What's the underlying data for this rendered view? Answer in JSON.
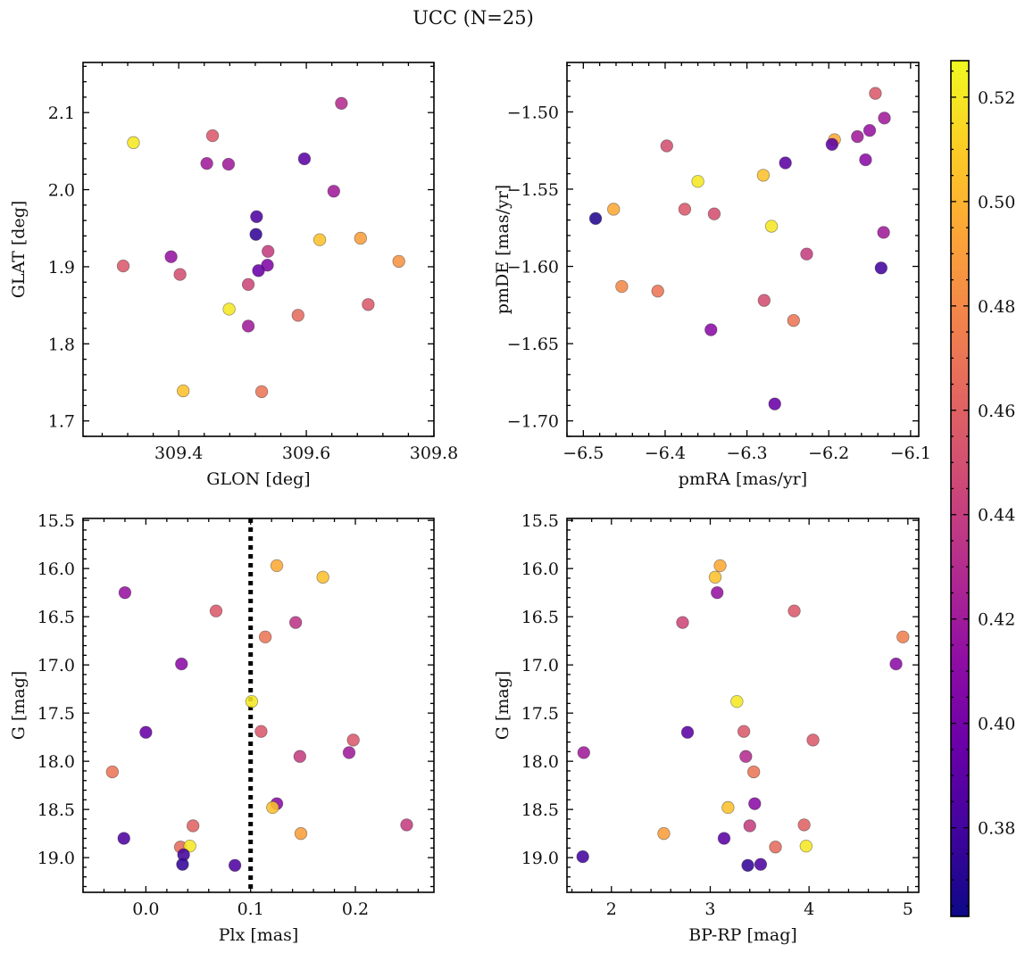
{
  "figure": {
    "title": "UCC (N=25)"
  },
  "colorbar": {
    "vmin": 0.363,
    "vmax": 0.527,
    "ticks": [
      0.38,
      0.4,
      0.42,
      0.44,
      0.46,
      0.48,
      0.5,
      0.52
    ],
    "tick_labels": [
      "0.38",
      "0.40",
      "0.42",
      "0.44",
      "0.46",
      "0.48",
      "0.50",
      "0.52"
    ],
    "colormap": "plasma"
  },
  "chart_data": [
    {
      "type": "scatter",
      "xlabel": "GLON [deg]",
      "ylabel": "GLAT [deg]",
      "xlim": [
        309.25,
        309.8
      ],
      "ylim": [
        1.68,
        2.165
      ],
      "y_inverted": false,
      "xticks": [
        309.4,
        309.6,
        309.8
      ],
      "xtick_labels": [
        "309.4",
        "309.6",
        "309.8"
      ],
      "x_minor_step": 0.04,
      "yticks": [
        1.7,
        1.8,
        1.9,
        2.0,
        2.1
      ],
      "ytick_labels": [
        "1.7",
        "1.8",
        "1.9",
        "2.0",
        "2.1"
      ],
      "y_minor_step": 0.02,
      "points": [
        {
          "x": 309.329,
          "y": 2.061,
          "c": 0.52
        },
        {
          "x": 309.453,
          "y": 2.07,
          "c": 0.455
        },
        {
          "x": 309.444,
          "y": 2.034,
          "c": 0.42
        },
        {
          "x": 309.478,
          "y": 2.033,
          "c": 0.42
        },
        {
          "x": 309.655,
          "y": 2.112,
          "c": 0.43
        },
        {
          "x": 309.597,
          "y": 2.04,
          "c": 0.39
        },
        {
          "x": 309.643,
          "y": 1.998,
          "c": 0.42
        },
        {
          "x": 309.522,
          "y": 1.965,
          "c": 0.385
        },
        {
          "x": 309.521,
          "y": 1.942,
          "c": 0.375
        },
        {
          "x": 309.621,
          "y": 1.935,
          "c": 0.505
        },
        {
          "x": 309.685,
          "y": 1.937,
          "c": 0.49
        },
        {
          "x": 309.745,
          "y": 1.907,
          "c": 0.485
        },
        {
          "x": 309.313,
          "y": 1.901,
          "c": 0.455
        },
        {
          "x": 309.388,
          "y": 1.913,
          "c": 0.415
        },
        {
          "x": 309.402,
          "y": 1.89,
          "c": 0.45
        },
        {
          "x": 309.54,
          "y": 1.92,
          "c": 0.44
        },
        {
          "x": 309.539,
          "y": 1.902,
          "c": 0.405
        },
        {
          "x": 309.525,
          "y": 1.895,
          "c": 0.395
        },
        {
          "x": 309.509,
          "y": 1.877,
          "c": 0.445
        },
        {
          "x": 309.479,
          "y": 1.845,
          "c": 0.52
        },
        {
          "x": 309.587,
          "y": 1.837,
          "c": 0.465
        },
        {
          "x": 309.697,
          "y": 1.851,
          "c": 0.455
        },
        {
          "x": 309.509,
          "y": 1.823,
          "c": 0.42
        },
        {
          "x": 309.407,
          "y": 1.739,
          "c": 0.505
        },
        {
          "x": 309.53,
          "y": 1.738,
          "c": 0.47
        }
      ]
    },
    {
      "type": "scatter",
      "xlabel": "pmRA [mas/yr]",
      "ylabel": "pmDE [mas/yr]",
      "xlim": [
        -6.52,
        -6.09
      ],
      "ylim": [
        -1.71,
        -1.468
      ],
      "y_inverted": false,
      "xticks": [
        -6.5,
        -6.4,
        -6.3,
        -6.2,
        -6.1
      ],
      "xtick_labels": [
        "−6.5",
        "−6.4",
        "−6.3",
        "−6.2",
        "−6.1"
      ],
      "x_minor_step": 0.02,
      "yticks": [
        -1.7,
        -1.65,
        -1.6,
        -1.55,
        -1.5
      ],
      "ytick_labels": [
        "−1.70",
        "−1.65",
        "−1.60",
        "−1.55",
        "−1.50"
      ],
      "y_minor_step": 0.01,
      "points": [
        {
          "x": -6.143,
          "y": -1.488,
          "c": 0.455
        },
        {
          "x": -6.132,
          "y": -1.504,
          "c": 0.42
        },
        {
          "x": -6.398,
          "y": -1.522,
          "c": 0.45
        },
        {
          "x": -6.193,
          "y": -1.518,
          "c": 0.495
        },
        {
          "x": -6.196,
          "y": -1.521,
          "c": 0.39
        },
        {
          "x": -6.165,
          "y": -1.516,
          "c": 0.42
        },
        {
          "x": -6.15,
          "y": -1.512,
          "c": 0.415
        },
        {
          "x": -6.155,
          "y": -1.531,
          "c": 0.41
        },
        {
          "x": -6.253,
          "y": -1.533,
          "c": 0.39
        },
        {
          "x": -6.28,
          "y": -1.541,
          "c": 0.505
        },
        {
          "x": -6.36,
          "y": -1.545,
          "c": 0.52
        },
        {
          "x": -6.463,
          "y": -1.563,
          "c": 0.495
        },
        {
          "x": -6.485,
          "y": -1.569,
          "c": 0.37
        },
        {
          "x": -6.376,
          "y": -1.563,
          "c": 0.455
        },
        {
          "x": -6.34,
          "y": -1.566,
          "c": 0.45
        },
        {
          "x": -6.27,
          "y": -1.574,
          "c": 0.52
        },
        {
          "x": -6.133,
          "y": -1.578,
          "c": 0.42
        },
        {
          "x": -6.227,
          "y": -1.592,
          "c": 0.44
        },
        {
          "x": -6.136,
          "y": -1.601,
          "c": 0.38
        },
        {
          "x": -6.453,
          "y": -1.613,
          "c": 0.48
        },
        {
          "x": -6.409,
          "y": -1.616,
          "c": 0.47
        },
        {
          "x": -6.279,
          "y": -1.622,
          "c": 0.45
        },
        {
          "x": -6.243,
          "y": -1.635,
          "c": 0.47
        },
        {
          "x": -6.344,
          "y": -1.641,
          "c": 0.41
        },
        {
          "x": -6.266,
          "y": -1.689,
          "c": 0.395
        }
      ]
    },
    {
      "type": "scatter",
      "xlabel": "Plx [mas]",
      "ylabel": "G [mag]",
      "xlim": [
        -0.06,
        0.275
      ],
      "ylim": [
        15.48,
        19.36
      ],
      "y_inverted": true,
      "xticks": [
        0.0,
        0.1,
        0.2
      ],
      "xtick_labels": [
        "0.0",
        "0.1",
        "0.2"
      ],
      "x_minor_step": 0.02,
      "yticks": [
        15.5,
        16.0,
        16.5,
        17.0,
        17.5,
        18.0,
        18.5,
        19.0
      ],
      "ytick_labels": [
        "15.5",
        "16.0",
        "16.5",
        "17.0",
        "17.5",
        "18.0",
        "18.5",
        "19.0"
      ],
      "y_minor_step": 0.1,
      "vline": {
        "x": 0.1,
        "style": "dotted"
      },
      "points": [
        {
          "x": 0.125,
          "y": 15.97,
          "c": 0.495
        },
        {
          "x": 0.169,
          "y": 16.09,
          "c": 0.505
        },
        {
          "x": -0.02,
          "y": 16.25,
          "c": 0.415
        },
        {
          "x": 0.067,
          "y": 16.44,
          "c": 0.455
        },
        {
          "x": 0.143,
          "y": 16.56,
          "c": 0.435
        },
        {
          "x": 0.114,
          "y": 16.71,
          "c": 0.47
        },
        {
          "x": 0.034,
          "y": 16.99,
          "c": 0.41
        },
        {
          "x": 0.101,
          "y": 17.38,
          "c": 0.52
        },
        {
          "x": 0.0,
          "y": 17.7,
          "c": 0.395
        },
        {
          "x": 0.11,
          "y": 17.69,
          "c": 0.455
        },
        {
          "x": 0.198,
          "y": 17.78,
          "c": 0.455
        },
        {
          "x": 0.147,
          "y": 17.95,
          "c": 0.44
        },
        {
          "x": 0.194,
          "y": 17.91,
          "c": 0.42
        },
        {
          "x": -0.032,
          "y": 18.11,
          "c": 0.47
        },
        {
          "x": 0.125,
          "y": 18.44,
          "c": 0.41
        },
        {
          "x": 0.121,
          "y": 18.48,
          "c": 0.505
        },
        {
          "x": 0.148,
          "y": 18.75,
          "c": 0.49
        },
        {
          "x": 0.045,
          "y": 18.67,
          "c": 0.46
        },
        {
          "x": 0.249,
          "y": 18.66,
          "c": 0.44
        },
        {
          "x": -0.021,
          "y": 18.8,
          "c": 0.385
        },
        {
          "x": 0.033,
          "y": 18.89,
          "c": 0.465
        },
        {
          "x": 0.042,
          "y": 18.88,
          "c": 0.52
        },
        {
          "x": 0.036,
          "y": 18.97,
          "c": 0.38
        },
        {
          "x": 0.035,
          "y": 19.07,
          "c": 0.375
        },
        {
          "x": 0.085,
          "y": 19.08,
          "c": 0.385
        }
      ]
    },
    {
      "type": "scatter",
      "xlabel": "BP-RP [mag]",
      "ylabel": "G [mag]",
      "xlim": [
        1.55,
        5.11
      ],
      "ylim": [
        15.48,
        19.36
      ],
      "y_inverted": true,
      "xticks": [
        2,
        3,
        4,
        5
      ],
      "xtick_labels": [
        "2",
        "3",
        "4",
        "5"
      ],
      "x_minor_step": 0.2,
      "yticks": [
        15.5,
        16.0,
        16.5,
        17.0,
        17.5,
        18.0,
        18.5,
        19.0
      ],
      "ytick_labels": [
        "15.5",
        "16.0",
        "16.5",
        "17.0",
        "17.5",
        "18.0",
        "18.5",
        "19.0"
      ],
      "y_minor_step": 0.1,
      "points": [
        {
          "x": 3.1,
          "y": 15.97,
          "c": 0.495
        },
        {
          "x": 3.05,
          "y": 16.09,
          "c": 0.505
        },
        {
          "x": 3.07,
          "y": 16.25,
          "c": 0.415
        },
        {
          "x": 2.72,
          "y": 16.56,
          "c": 0.445
        },
        {
          "x": 3.85,
          "y": 16.44,
          "c": 0.455
        },
        {
          "x": 4.95,
          "y": 16.71,
          "c": 0.475
        },
        {
          "x": 4.88,
          "y": 16.99,
          "c": 0.41
        },
        {
          "x": 3.27,
          "y": 17.38,
          "c": 0.52
        },
        {
          "x": 2.77,
          "y": 17.7,
          "c": 0.39
        },
        {
          "x": 3.34,
          "y": 17.69,
          "c": 0.455
        },
        {
          "x": 4.04,
          "y": 17.78,
          "c": 0.455
        },
        {
          "x": 3.36,
          "y": 17.95,
          "c": 0.43
        },
        {
          "x": 1.72,
          "y": 17.91,
          "c": 0.42
        },
        {
          "x": 3.44,
          "y": 18.11,
          "c": 0.47
        },
        {
          "x": 3.45,
          "y": 18.44,
          "c": 0.41
        },
        {
          "x": 3.18,
          "y": 18.48,
          "c": 0.505
        },
        {
          "x": 2.53,
          "y": 18.75,
          "c": 0.49
        },
        {
          "x": 3.4,
          "y": 18.67,
          "c": 0.44
        },
        {
          "x": 3.95,
          "y": 18.66,
          "c": 0.46
        },
        {
          "x": 3.14,
          "y": 18.8,
          "c": 0.39
        },
        {
          "x": 3.66,
          "y": 18.89,
          "c": 0.465
        },
        {
          "x": 3.97,
          "y": 18.88,
          "c": 0.52
        },
        {
          "x": 1.71,
          "y": 18.99,
          "c": 0.38
        },
        {
          "x": 3.38,
          "y": 19.08,
          "c": 0.375
        },
        {
          "x": 3.51,
          "y": 19.07,
          "c": 0.385
        }
      ]
    }
  ]
}
